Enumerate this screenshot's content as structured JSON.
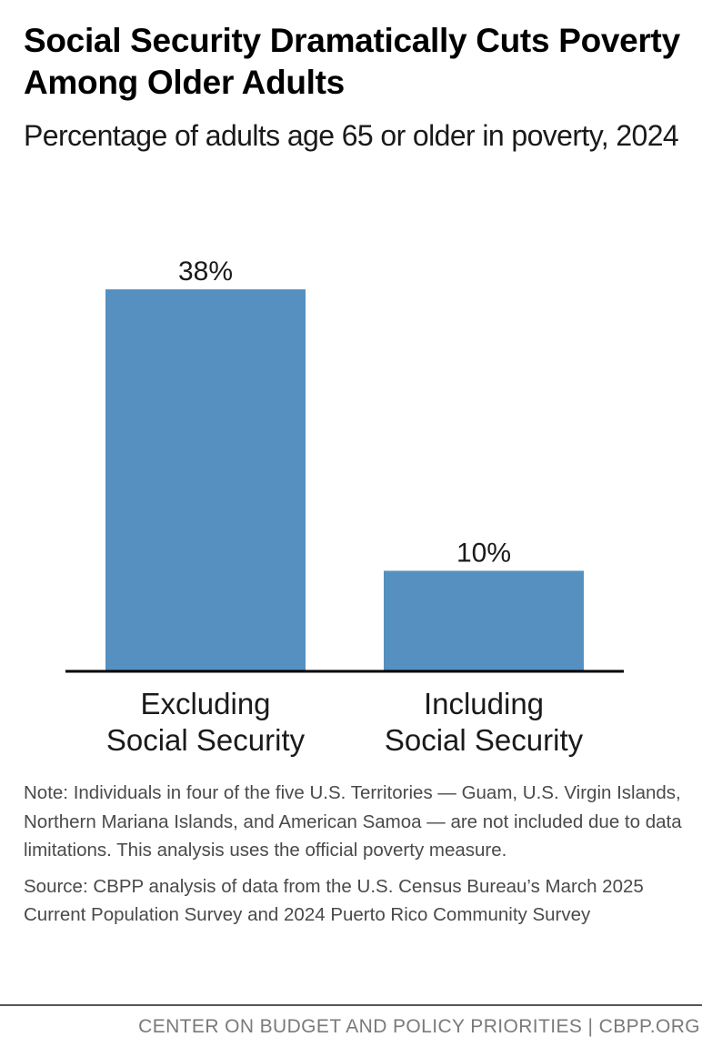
{
  "title": "Social Security Dramatically Cuts Poverty Among Older Adults",
  "subtitle": "Percentage of adults age 65 or older in poverty, 2024",
  "chart_data": {
    "type": "bar",
    "categories": [
      "Excluding Social Security",
      "Including Social Security"
    ],
    "category_lines": [
      [
        "Excluding",
        "Social Security"
      ],
      [
        "Including",
        "Social Security"
      ]
    ],
    "values": [
      38,
      10
    ],
    "data_labels": [
      "38%",
      "10%"
    ],
    "ylim": [
      0,
      40
    ],
    "grid": false,
    "bar_color": "#5590c0",
    "axis_color": "#000000"
  },
  "note": "Note: Individuals in four of the five U.S. Territories — Guam, U.S. Virgin Islands, Northern Mariana Islands, and American Samoa — are not included due to data limitations. This analysis uses the official poverty measure.",
  "source": "Source: CBPP analysis of data from the U.S. Census Bureau’s March 2025 Current Population Survey and 2024 Puerto Rico Community Survey",
  "footer": "CENTER ON BUDGET AND POLICY PRIORITIES | CBPP.ORG"
}
